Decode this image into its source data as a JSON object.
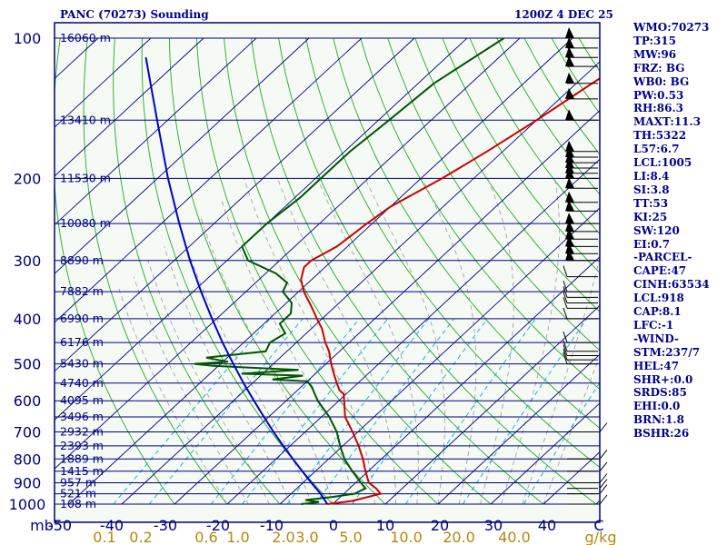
{
  "title_left": "PANC (70273) Sounding",
  "title_right": "1200Z  4 DEC 25",
  "indices": [
    "WMO:70273",
    "TP:315",
    "MW:96",
    "FRZ: BG",
    "WB0: BG",
    "PW:0.53",
    "RH:86.3",
    "MAXT:11.3",
    "TH:5322",
    "L57:6.7",
    "LCL:1005",
    "LI:8.4",
    "SI:3.8",
    "TT:53",
    "KI:25",
    "SW:120",
    "EI:0.7",
    "-PARCEL-",
    "CAPE:47",
    "CINH:63534",
    "LCL:918",
    "CAP:8.1",
    "LFC:-1",
    "-WIND-",
    "STM:237/7",
    "HEL:47",
    "SHR+:0.0",
    "SRDS:85",
    "EHI:0.0",
    "BRN:1.8",
    "BSHR:26"
  ],
  "colors": {
    "background": "#ffffff",
    "plot_background": "#f5faf5",
    "isobar": "#000080",
    "isotherm": "#000080",
    "dry_adiabat": "#22aa22",
    "moist_adiabat": "#999999",
    "mixing_ratio": "#00aadd",
    "temperature": "#cc0000",
    "dewpoint": "#005500",
    "parcel": "#0000cc",
    "wind_barb": "#000000",
    "text": "#00008b",
    "mixing_ratio_label": "#b8860b"
  },
  "chart_data": {
    "type": "skew-t",
    "title": "PANC (70273) Sounding",
    "pressure_axis": {
      "unit_label": "mb",
      "scale": "log",
      "range": [
        1000,
        100
      ],
      "tick_labels": [
        "100",
        "200",
        "300",
        "400",
        "500",
        "600",
        "700",
        "800",
        "900",
        "1000"
      ]
    },
    "temperature_axis": {
      "range": [
        -50,
        50
      ],
      "tick_labels": [
        "-50",
        "-40",
        "-30",
        "-20",
        "-10",
        "0",
        "10",
        "20",
        "30",
        "40",
        "C"
      ]
    },
    "mixing_ratio_axis": {
      "unit_label": "g/kg",
      "tick_labels": [
        "0.1",
        "0.2",
        "0.6",
        "1.0",
        "2.0",
        "3.0",
        "5.0",
        "10.0",
        "20.0",
        "40.0"
      ]
    },
    "height_labels": [
      {
        "p": 1000,
        "text": "108 m"
      },
      {
        "p": 950,
        "text": "521 m"
      },
      {
        "p": 900,
        "text": "957 m"
      },
      {
        "p": 850,
        "text": "1415 m"
      },
      {
        "p": 800,
        "text": "1889 m"
      },
      {
        "p": 750,
        "text": "2393 m"
      },
      {
        "p": 700,
        "text": "2932 m"
      },
      {
        "p": 650,
        "text": "3496 m"
      },
      {
        "p": 600,
        "text": "4095 m"
      },
      {
        "p": 550,
        "text": "4740 m"
      },
      {
        "p": 500,
        "text": "5430 m"
      },
      {
        "p": 450,
        "text": "6176 m"
      },
      {
        "p": 400,
        "text": "6990 m"
      },
      {
        "p": 350,
        "text": "7882 m"
      },
      {
        "p": 300,
        "text": "8890 m"
      },
      {
        "p": 250,
        "text": "10080 m"
      },
      {
        "p": 200,
        "text": "11530 m"
      },
      {
        "p": 150,
        "text": "13410 m"
      },
      {
        "p": 100,
        "text": "16060 m"
      }
    ],
    "series": [
      {
        "key": "temperature",
        "points": [
          [
            1000,
            -1
          ],
          [
            985,
            3
          ],
          [
            950,
            7
          ],
          [
            925,
            5
          ],
          [
            900,
            2.5
          ],
          [
            850,
            -0.5
          ],
          [
            800,
            -3.5
          ],
          [
            750,
            -7
          ],
          [
            700,
            -11
          ],
          [
            650,
            -15.5
          ],
          [
            600,
            -19
          ],
          [
            580,
            -20.5
          ],
          [
            570,
            -22
          ],
          [
            550,
            -24
          ],
          [
            530,
            -26
          ],
          [
            510,
            -28
          ],
          [
            490,
            -30
          ],
          [
            470,
            -32
          ],
          [
            450,
            -34.5
          ],
          [
            420,
            -38
          ],
          [
            400,
            -41
          ],
          [
            380,
            -44
          ],
          [
            350,
            -49
          ],
          [
            330,
            -52
          ],
          [
            310,
            -54
          ],
          [
            300,
            -54
          ],
          [
            280,
            -52
          ],
          [
            250,
            -51
          ],
          [
            230,
            -50
          ],
          [
            200,
            -46
          ],
          [
            175,
            -43
          ],
          [
            150,
            -40
          ],
          [
            125,
            -37
          ],
          [
            100,
            -33
          ]
        ]
      },
      {
        "key": "dewpoint",
        "points": [
          [
            1000,
            -6
          ],
          [
            990,
            -3
          ],
          [
            980,
            -6
          ],
          [
            965,
            -1.5
          ],
          [
            950,
            2
          ],
          [
            925,
            3
          ],
          [
            900,
            1
          ],
          [
            850,
            -3
          ],
          [
            800,
            -7
          ],
          [
            750,
            -10.5
          ],
          [
            700,
            -14
          ],
          [
            650,
            -18.5
          ],
          [
            600,
            -24
          ],
          [
            580,
            -26
          ],
          [
            560,
            -28
          ],
          [
            545,
            -30
          ],
          [
            540,
            -37
          ],
          [
            530,
            -32
          ],
          [
            525,
            -44
          ],
          [
            515,
            -34
          ],
          [
            505,
            -51
          ],
          [
            500,
            -55
          ],
          [
            495,
            -49
          ],
          [
            485,
            -54
          ],
          [
            470,
            -44
          ],
          [
            450,
            -45
          ],
          [
            430,
            -44
          ],
          [
            410,
            -47
          ],
          [
            390,
            -47
          ],
          [
            370,
            -49
          ],
          [
            350,
            -53
          ],
          [
            335,
            -54
          ],
          [
            320,
            -58
          ],
          [
            300,
            -66
          ],
          [
            280,
            -70
          ],
          [
            250,
            -70
          ],
          [
            220,
            -69
          ],
          [
            200,
            -69
          ],
          [
            175,
            -69
          ],
          [
            150,
            -68
          ],
          [
            125,
            -67
          ],
          [
            100,
            -63
          ]
        ]
      },
      {
        "key": "parcel",
        "points": [
          [
            1000,
            -1
          ],
          [
            950,
            -4.4
          ],
          [
            900,
            -8.4
          ],
          [
            850,
            -12.5
          ],
          [
            800,
            -16.8
          ],
          [
            750,
            -21.3
          ],
          [
            700,
            -26
          ],
          [
            650,
            -30.9
          ],
          [
            600,
            -36.1
          ],
          [
            550,
            -41.7
          ],
          [
            500,
            -47.6
          ],
          [
            450,
            -54
          ],
          [
            400,
            -60.9
          ],
          [
            350,
            -68.5
          ],
          [
            300,
            -77
          ],
          [
            250,
            -86.6
          ],
          [
            200,
            -98
          ],
          [
            150,
            -112
          ],
          [
            110,
            -127
          ]
        ]
      }
    ]
  }
}
